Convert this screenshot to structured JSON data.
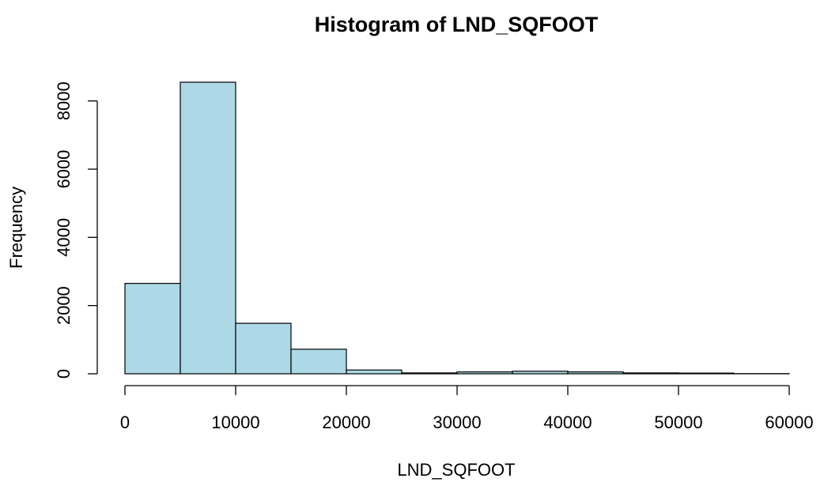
{
  "chart_data": {
    "type": "bar",
    "title": "Histogram of LND_SQFOOT",
    "xlabel": "LND_SQFOOT",
    "ylabel": "Frequency",
    "bins": [
      {
        "start": 0,
        "end": 5000,
        "count": 2650
      },
      {
        "start": 5000,
        "end": 10000,
        "count": 8550
      },
      {
        "start": 10000,
        "end": 15000,
        "count": 1480
      },
      {
        "start": 15000,
        "end": 20000,
        "count": 720
      },
      {
        "start": 20000,
        "end": 25000,
        "count": 110
      },
      {
        "start": 25000,
        "end": 30000,
        "count": 25
      },
      {
        "start": 30000,
        "end": 35000,
        "count": 55
      },
      {
        "start": 35000,
        "end": 40000,
        "count": 75
      },
      {
        "start": 40000,
        "end": 45000,
        "count": 55
      },
      {
        "start": 45000,
        "end": 50000,
        "count": 25
      },
      {
        "start": 50000,
        "end": 55000,
        "count": 20
      },
      {
        "start": 55000,
        "end": 60000,
        "count": 5
      }
    ],
    "xlim": [
      0,
      60000
    ],
    "ylim": [
      0,
      8550
    ],
    "x_ticks": [
      "0",
      "10000",
      "20000",
      "30000",
      "40000",
      "50000",
      "60000"
    ],
    "y_ticks": [
      "0",
      "2000",
      "4000",
      "6000",
      "8000"
    ],
    "bar_color": "#add8e6",
    "grid": false
  }
}
